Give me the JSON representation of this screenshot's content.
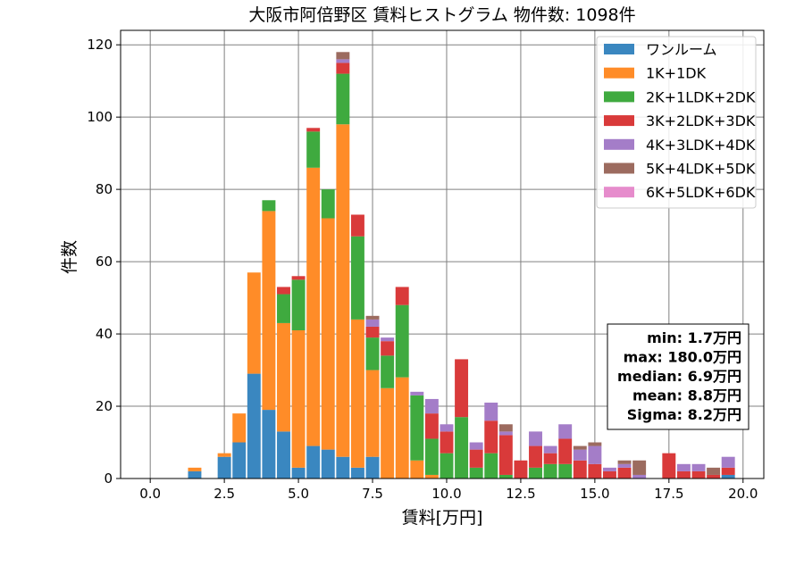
{
  "chart_data": {
    "type": "bar",
    "title": "大阪市阿倍野区 賃料ヒストグラム  物件数: 1098件",
    "xlabel": "賃料[万円]",
    "ylabel": "件数",
    "xlim": [
      -1.0,
      20.7
    ],
    "ylim": [
      0,
      124
    ],
    "x_ticks": [
      0.0,
      2.5,
      5.0,
      7.5,
      10.0,
      12.5,
      15.0,
      17.5,
      20.0
    ],
    "y_ticks": [
      0,
      20,
      40,
      60,
      80,
      100,
      120
    ],
    "bin_width": 0.5,
    "grid": true,
    "legend_position": "top-right",
    "x": [
      1.5,
      2.5,
      3.0,
      3.5,
      4.0,
      4.5,
      5.0,
      5.5,
      6.0,
      6.5,
      7.0,
      7.5,
      8.0,
      8.5,
      9.0,
      9.5,
      10.0,
      10.5,
      11.0,
      11.5,
      12.0,
      12.5,
      13.0,
      13.5,
      14.0,
      14.5,
      15.0,
      15.5,
      16.0,
      16.5,
      17.5,
      18.0,
      18.5,
      19.0,
      19.5
    ],
    "series": [
      {
        "name": "ワンルーム",
        "color": "#3a87c0",
        "values": [
          2,
          6,
          10,
          29,
          19,
          13,
          3,
          9,
          8,
          6,
          3,
          6,
          0,
          0,
          0,
          0,
          0,
          0,
          0,
          0,
          0,
          0,
          0,
          0,
          0,
          0,
          0,
          0,
          0,
          0,
          0,
          0,
          0,
          0,
          1
        ]
      },
      {
        "name": "1K+1DK",
        "color": "#ff8c28",
        "values": [
          1,
          1,
          8,
          28,
          55,
          30,
          38,
          77,
          64,
          92,
          41,
          24,
          25,
          28,
          5,
          1,
          0,
          0,
          0,
          0,
          0,
          0,
          0,
          0,
          0,
          0,
          0,
          0,
          0,
          0,
          0,
          0,
          0,
          0,
          0
        ]
      },
      {
        "name": "2K+1LDK+2DK",
        "color": "#3faa3f",
        "values": [
          0,
          0,
          0,
          0,
          3,
          8,
          14,
          10,
          8,
          14,
          23,
          9,
          9,
          20,
          18,
          10,
          7,
          17,
          3,
          7,
          1,
          0,
          3,
          4,
          4,
          0,
          0,
          0,
          0,
          0,
          0,
          0,
          0,
          0,
          0
        ]
      },
      {
        "name": "3K+2LDK+3DK",
        "color": "#d93a3a",
        "values": [
          0,
          0,
          0,
          0,
          0,
          2,
          1,
          1,
          0,
          3,
          6,
          3,
          4,
          5,
          0,
          7,
          6,
          16,
          5,
          9,
          11,
          5,
          6,
          3,
          7,
          5,
          4,
          2,
          3,
          0,
          7,
          2,
          2,
          1,
          2
        ]
      },
      {
        "name": "4K+3LDK+4DK",
        "color": "#a47dc8",
        "values": [
          0,
          0,
          0,
          0,
          0,
          0,
          0,
          0,
          0,
          1,
          0,
          2,
          1,
          0,
          1,
          4,
          2,
          0,
          2,
          5,
          1,
          0,
          4,
          2,
          4,
          3,
          5,
          1,
          1,
          1,
          0,
          2,
          2,
          0,
          3
        ]
      },
      {
        "name": "5K+4LDK+5DK",
        "color": "#9c6b5f",
        "values": [
          0,
          0,
          0,
          0,
          0,
          0,
          0,
          0,
          0,
          2,
          0,
          1,
          0,
          0,
          0,
          0,
          0,
          0,
          0,
          0,
          2,
          0,
          0,
          0,
          0,
          1,
          1,
          0,
          1,
          4,
          0,
          0,
          0,
          2,
          0
        ]
      },
      {
        "name": "6K+5LDK+6DK",
        "color": "#e68ccc",
        "values": [
          0,
          0,
          0,
          0,
          0,
          0,
          0,
          0,
          0,
          0,
          0,
          0,
          0,
          0,
          0,
          0,
          0,
          0,
          0,
          0,
          0,
          0,
          0,
          0,
          0,
          0,
          0,
          0,
          0,
          0,
          0,
          0,
          0,
          0,
          0
        ]
      }
    ],
    "stats": [
      "min: 1.7万円",
      "max: 180.0万円",
      "median: 6.9万円",
      "mean: 8.8万円",
      "Sigma: 8.2万円"
    ]
  }
}
